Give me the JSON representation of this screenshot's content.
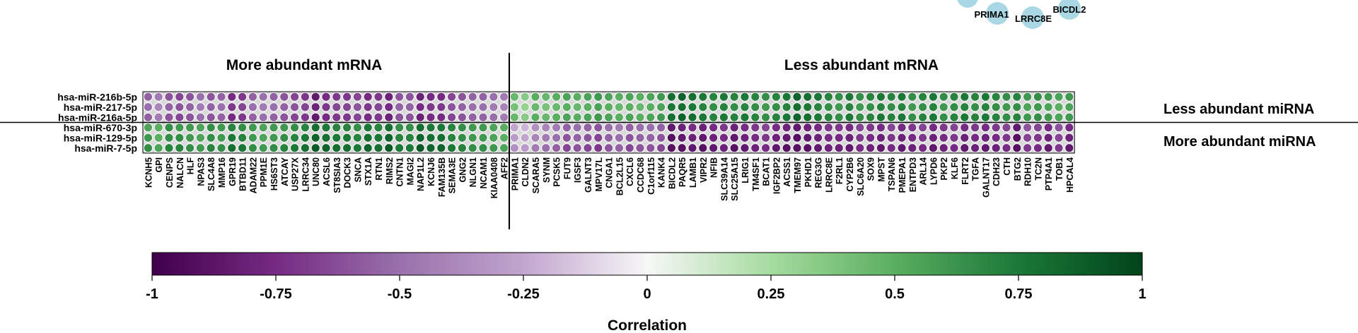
{
  "chart_data": {
    "type": "heatmap",
    "title": "",
    "sections": {
      "left_header": "More abundant mRNA",
      "right_header": "Less abundant mRNA"
    },
    "row_groups": {
      "top": "Less abundant miRNA",
      "bottom": "More abundant miRNA"
    },
    "rows": [
      "hsa-miR-216b-5p",
      "hsa-miR-217-5p",
      "hsa-miR-216a-5p",
      "hsa-miR-670-3p",
      "hsa-miR-129-5p",
      "hsa-miR-7-5p"
    ],
    "columns": [
      "KCNH5",
      "GPI",
      "CENPS",
      "NALCN",
      "HLF",
      "NPAS3",
      "SLC4A8",
      "MMP16",
      "GPR19",
      "BTBD11",
      "ADAM22",
      "PPM1E",
      "HS6ST3",
      "ATCAY",
      "USP27X",
      "LRRC34",
      "UNC80",
      "ACSL6",
      "ST8SIA3",
      "DOCK3",
      "SNCA",
      "STX1A",
      "RTN1",
      "RIMS2",
      "CNTN1",
      "MAGI2",
      "NAP1L2",
      "KCNJ6",
      "FAM135B",
      "SEMA3E",
      "GNG2",
      "NLGN1",
      "NCAM1",
      "KIAA0408",
      "AFF2",
      "PRIMA1",
      "CLDN2",
      "SCARA5",
      "SYNM",
      "PCSK5",
      "FUT9",
      "IGSF3",
      "GALNT3",
      "MPV17L",
      "CNGA1",
      "BCL2L15",
      "CXCL6",
      "CCDC68",
      "C1orf115",
      "KANK4",
      "BICDL2",
      "PAQR5",
      "LAMB1",
      "VIPR2",
      "NFIB",
      "SLC39A14",
      "SLC25A15",
      "LRIG1",
      "TM4SF1",
      "BCAT1",
      "IGF2BP2",
      "ACSS1",
      "TMEM97",
      "PKHD1",
      "REG3G",
      "LRRC8E",
      "F2RL1",
      "CYP2B6",
      "SLC6A20",
      "SOX9",
      "MPST",
      "TSPAN6",
      "PMEPA1",
      "ENTPD3",
      "ARL14",
      "LYPD6",
      "PKP2",
      "KLF6",
      "FLRT2",
      "TGFA",
      "GALNT17",
      "CDH23",
      "CTH",
      "BTG2",
      "RDH10",
      "TC2N",
      "PTP4A1",
      "TOB1",
      "HPCAL4"
    ],
    "split_after_column": "AFF2",
    "split_after_row": "hsa-miR-216a-5p",
    "values_more_abundant_mRNA": [
      [
        -0.55,
        -0.45,
        -0.6,
        -0.65,
        -0.6,
        -0.5,
        -0.6,
        -0.55,
        -0.75,
        -0.7,
        -0.55,
        -0.5,
        -0.55,
        -0.6,
        -0.65,
        -0.7,
        -0.85,
        -0.75,
        -0.7,
        -0.7,
        -0.65,
        -0.75,
        -0.7,
        -0.8,
        -0.6,
        -0.6,
        -0.8,
        -0.75,
        -0.75,
        -0.65,
        -0.6,
        -0.55,
        -0.55,
        -0.5,
        -0.45
      ],
      [
        -0.5,
        -0.4,
        -0.55,
        -0.6,
        -0.55,
        -0.45,
        -0.55,
        -0.5,
        -0.7,
        -0.65,
        -0.5,
        -0.45,
        -0.5,
        -0.55,
        -0.6,
        -0.65,
        -0.8,
        -0.7,
        -0.65,
        -0.65,
        -0.6,
        -0.7,
        -0.65,
        -0.75,
        -0.55,
        -0.55,
        -0.75,
        -0.7,
        -0.7,
        -0.6,
        -0.55,
        -0.5,
        -0.5,
        -0.45,
        -0.4
      ],
      [
        -0.55,
        -0.45,
        -0.6,
        -0.65,
        -0.6,
        -0.5,
        -0.6,
        -0.55,
        -0.75,
        -0.7,
        -0.55,
        -0.5,
        -0.55,
        -0.6,
        -0.65,
        -0.7,
        -0.85,
        -0.75,
        -0.7,
        -0.7,
        -0.65,
        -0.75,
        -0.7,
        -0.8,
        -0.6,
        -0.6,
        -0.8,
        -0.75,
        -0.75,
        -0.65,
        -0.6,
        -0.55,
        -0.55,
        -0.5,
        -0.45
      ],
      [
        0.55,
        0.5,
        0.65,
        0.6,
        0.6,
        0.55,
        0.65,
        0.6,
        0.7,
        0.65,
        0.6,
        0.55,
        0.6,
        0.6,
        0.65,
        0.7,
        0.8,
        0.75,
        0.7,
        0.7,
        0.65,
        0.75,
        0.7,
        0.8,
        0.65,
        0.65,
        0.8,
        0.75,
        0.75,
        0.7,
        0.65,
        0.6,
        0.6,
        0.55,
        0.5
      ],
      [
        0.6,
        0.5,
        0.65,
        0.65,
        0.6,
        0.55,
        0.65,
        0.6,
        0.75,
        0.7,
        0.6,
        0.55,
        0.6,
        0.65,
        0.7,
        0.75,
        0.85,
        0.8,
        0.75,
        0.75,
        0.7,
        0.8,
        0.75,
        0.85,
        0.7,
        0.7,
        0.85,
        0.8,
        0.8,
        0.7,
        0.65,
        0.6,
        0.6,
        0.55,
        0.5
      ],
      [
        0.65,
        0.55,
        0.7,
        0.7,
        0.65,
        0.6,
        0.7,
        0.65,
        0.8,
        0.75,
        0.65,
        0.6,
        0.65,
        0.7,
        0.75,
        0.8,
        0.9,
        0.85,
        0.8,
        0.8,
        0.75,
        0.85,
        0.8,
        0.9,
        0.75,
        0.75,
        0.9,
        0.85,
        0.85,
        0.75,
        0.7,
        0.65,
        0.65,
        0.6,
        0.55
      ]
    ],
    "values_less_abundant_mRNA": [
      [
        0.45,
        0.35,
        0.5,
        0.45,
        0.5,
        0.55,
        0.5,
        0.55,
        0.6,
        0.55,
        0.5,
        0.55,
        0.5,
        0.55,
        0.6,
        0.8,
        0.85,
        0.8,
        0.75,
        0.7,
        0.75,
        0.7,
        0.75,
        0.7,
        0.65,
        0.7,
        0.75,
        0.85,
        0.8,
        0.75,
        0.7,
        0.65,
        0.75,
        0.65,
        0.7,
        0.75,
        0.7,
        0.75,
        0.65,
        0.7,
        0.75,
        0.65,
        0.7,
        0.75,
        0.7,
        0.75,
        0.7,
        0.65,
        0.7,
        0.6,
        0.65,
        0.6,
        0.55,
        0.6
      ],
      [
        0.4,
        0.3,
        0.45,
        0.4,
        0.45,
        0.5,
        0.45,
        0.5,
        0.55,
        0.5,
        0.45,
        0.5,
        0.45,
        0.5,
        0.55,
        0.75,
        0.8,
        0.75,
        0.7,
        0.65,
        0.7,
        0.65,
        0.7,
        0.65,
        0.6,
        0.65,
        0.7,
        0.8,
        0.75,
        0.7,
        0.65,
        0.6,
        0.7,
        0.6,
        0.65,
        0.7,
        0.65,
        0.7,
        0.6,
        0.65,
        0.7,
        0.6,
        0.65,
        0.7,
        0.65,
        0.7,
        0.65,
        0.6,
        0.65,
        0.55,
        0.6,
        0.55,
        0.5,
        0.55
      ],
      [
        0.45,
        0.35,
        0.5,
        0.45,
        0.5,
        0.55,
        0.5,
        0.55,
        0.6,
        0.55,
        0.5,
        0.55,
        0.5,
        0.55,
        0.6,
        0.8,
        0.85,
        0.8,
        0.75,
        0.7,
        0.75,
        0.7,
        0.75,
        0.7,
        0.65,
        0.7,
        0.75,
        0.85,
        0.8,
        0.75,
        0.7,
        0.65,
        0.75,
        0.65,
        0.7,
        0.75,
        0.7,
        0.75,
        0.65,
        0.7,
        0.75,
        0.65,
        0.7,
        0.75,
        0.7,
        0.75,
        0.7,
        0.65,
        0.7,
        0.6,
        0.65,
        0.6,
        0.55,
        0.6
      ],
      [
        -0.25,
        -0.2,
        -0.35,
        -0.4,
        -0.45,
        -0.55,
        -0.5,
        -0.55,
        -0.6,
        -0.5,
        -0.45,
        -0.55,
        -0.5,
        -0.5,
        -0.55,
        -0.85,
        -0.8,
        -0.75,
        -0.8,
        -0.75,
        -0.7,
        -0.8,
        -0.75,
        -0.7,
        -0.65,
        -0.75,
        -0.8,
        -0.85,
        -0.8,
        -0.75,
        -0.7,
        -0.7,
        -0.75,
        -0.65,
        -0.7,
        -0.75,
        -0.65,
        -0.75,
        -0.7,
        -0.65,
        -0.75,
        -0.7,
        -0.65,
        -0.75,
        -0.7,
        -0.75,
        -0.7,
        -0.65,
        -0.85,
        -0.6,
        -0.65,
        -0.75,
        -0.6,
        -0.75
      ],
      [
        -0.3,
        -0.25,
        -0.4,
        -0.45,
        -0.5,
        -0.6,
        -0.55,
        -0.6,
        -0.65,
        -0.55,
        -0.5,
        -0.6,
        -0.55,
        -0.55,
        -0.6,
        -0.9,
        -0.85,
        -0.8,
        -0.85,
        -0.8,
        -0.75,
        -0.85,
        -0.8,
        -0.75,
        -0.7,
        -0.8,
        -0.85,
        -0.9,
        -0.85,
        -0.8,
        -0.75,
        -0.75,
        -0.8,
        -0.7,
        -0.75,
        -0.8,
        -0.7,
        -0.8,
        -0.75,
        -0.7,
        -0.8,
        -0.75,
        -0.7,
        -0.8,
        -0.75,
        -0.8,
        -0.75,
        -0.7,
        -0.9,
        -0.65,
        -0.7,
        -0.8,
        -0.65,
        -0.8
      ],
      [
        -0.35,
        -0.3,
        -0.45,
        -0.5,
        -0.55,
        -0.65,
        -0.6,
        -0.65,
        -0.7,
        -0.6,
        -0.55,
        -0.65,
        -0.6,
        -0.6,
        -0.65,
        -0.9,
        -0.9,
        -0.85,
        -0.9,
        -0.85,
        -0.8,
        -0.9,
        -0.85,
        -0.8,
        -0.75,
        -0.85,
        -0.9,
        -0.9,
        -0.9,
        -0.85,
        -0.8,
        -0.8,
        -0.85,
        -0.75,
        -0.8,
        -0.85,
        -0.75,
        -0.85,
        -0.8,
        -0.75,
        -0.85,
        -0.8,
        -0.75,
        -0.85,
        -0.8,
        -0.85,
        -0.8,
        -0.75,
        -0.9,
        -0.7,
        -0.75,
        -0.85,
        -0.7,
        -0.85
      ]
    ],
    "colorbar": {
      "label": "Correlation",
      "range": [
        -1,
        1
      ],
      "ticks": [
        -1,
        -0.75,
        -0.5,
        -0.25,
        0,
        0.25,
        0.5,
        0.75,
        1
      ],
      "tick_labels": [
        "-1",
        "-0.75",
        "-0.5",
        "-0.25",
        "0",
        "0.25",
        "0.5",
        "0.75",
        "1"
      ],
      "colormap": "PRGn",
      "color_low": "#40004b",
      "color_mid": "#f7f7f7",
      "color_high": "#00441b"
    },
    "network_fragment": {
      "node_color": "#a9d8e4",
      "labels": [
        "PRIMA1",
        "LRRC8E",
        "BICDL2"
      ]
    }
  }
}
